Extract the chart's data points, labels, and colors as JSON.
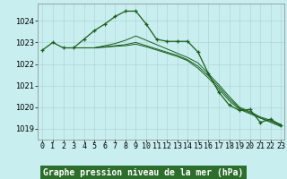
{
  "title": "Graphe pression niveau de la mer (hPa)",
  "background_color": "#c8eef0",
  "grid_color": "#b0d8d8",
  "line_color": "#1a5e1a",
  "x_min": 0,
  "x_max": 23,
  "y_min": 1018.5,
  "y_max": 1024.8,
  "yticks": [
    1019,
    1020,
    1021,
    1022,
    1023,
    1024
  ],
  "xticks": [
    0,
    1,
    2,
    3,
    4,
    5,
    6,
    7,
    8,
    9,
    10,
    11,
    12,
    13,
    14,
    15,
    16,
    17,
    18,
    19,
    20,
    21,
    22,
    23
  ],
  "series_main": {
    "x": [
      0,
      1,
      2,
      3,
      4,
      5,
      6,
      7,
      8,
      9,
      10,
      11,
      12,
      13,
      14,
      15,
      16,
      17,
      18,
      19,
      20,
      21,
      22,
      23
    ],
    "y": [
      1022.65,
      1023.0,
      1022.75,
      1022.75,
      1023.15,
      1023.55,
      1023.85,
      1024.2,
      1024.45,
      1024.45,
      1023.85,
      1023.15,
      1023.05,
      1023.05,
      1023.05,
      1022.55,
      1021.55,
      1020.7,
      1020.1,
      1019.85,
      1019.9,
      1019.3,
      1019.45,
      1019.15
    ]
  },
  "series_extra": [
    {
      "x": [
        3,
        4,
        5,
        6,
        7,
        8,
        9,
        10,
        11,
        12,
        13,
        14,
        15,
        16,
        17,
        18,
        19,
        20,
        21,
        22,
        23
      ],
      "y": [
        1022.75,
        1022.75,
        1022.75,
        1022.85,
        1022.95,
        1023.1,
        1023.3,
        1023.1,
        1022.9,
        1022.7,
        1022.5,
        1022.3,
        1022.05,
        1021.55,
        1021.05,
        1020.5,
        1020.0,
        1019.8,
        1019.55,
        1019.4,
        1019.2
      ]
    },
    {
      "x": [
        3,
        4,
        5,
        6,
        7,
        8,
        9,
        10,
        11,
        12,
        13,
        14,
        15,
        16,
        17,
        18,
        19,
        20,
        21,
        22,
        23
      ],
      "y": [
        1022.75,
        1022.75,
        1022.75,
        1022.8,
        1022.85,
        1022.9,
        1023.0,
        1022.85,
        1022.7,
        1022.55,
        1022.4,
        1022.2,
        1021.9,
        1021.45,
        1020.95,
        1020.4,
        1019.95,
        1019.75,
        1019.5,
        1019.35,
        1019.15
      ]
    },
    {
      "x": [
        3,
        4,
        5,
        6,
        7,
        8,
        9,
        10,
        11,
        12,
        13,
        14,
        15,
        16,
        17,
        18,
        19,
        20,
        21,
        22,
        23
      ],
      "y": [
        1022.75,
        1022.75,
        1022.75,
        1022.78,
        1022.82,
        1022.85,
        1022.92,
        1022.8,
        1022.65,
        1022.5,
        1022.35,
        1022.15,
        1021.8,
        1021.35,
        1020.85,
        1020.3,
        1019.9,
        1019.7,
        1019.5,
        1019.3,
        1019.1
      ]
    }
  ],
  "title_bg_color": "#2d6e2d",
  "title_text_color": "#ffffff",
  "title_fontsize": 7.0,
  "tick_fontsize": 6.0
}
